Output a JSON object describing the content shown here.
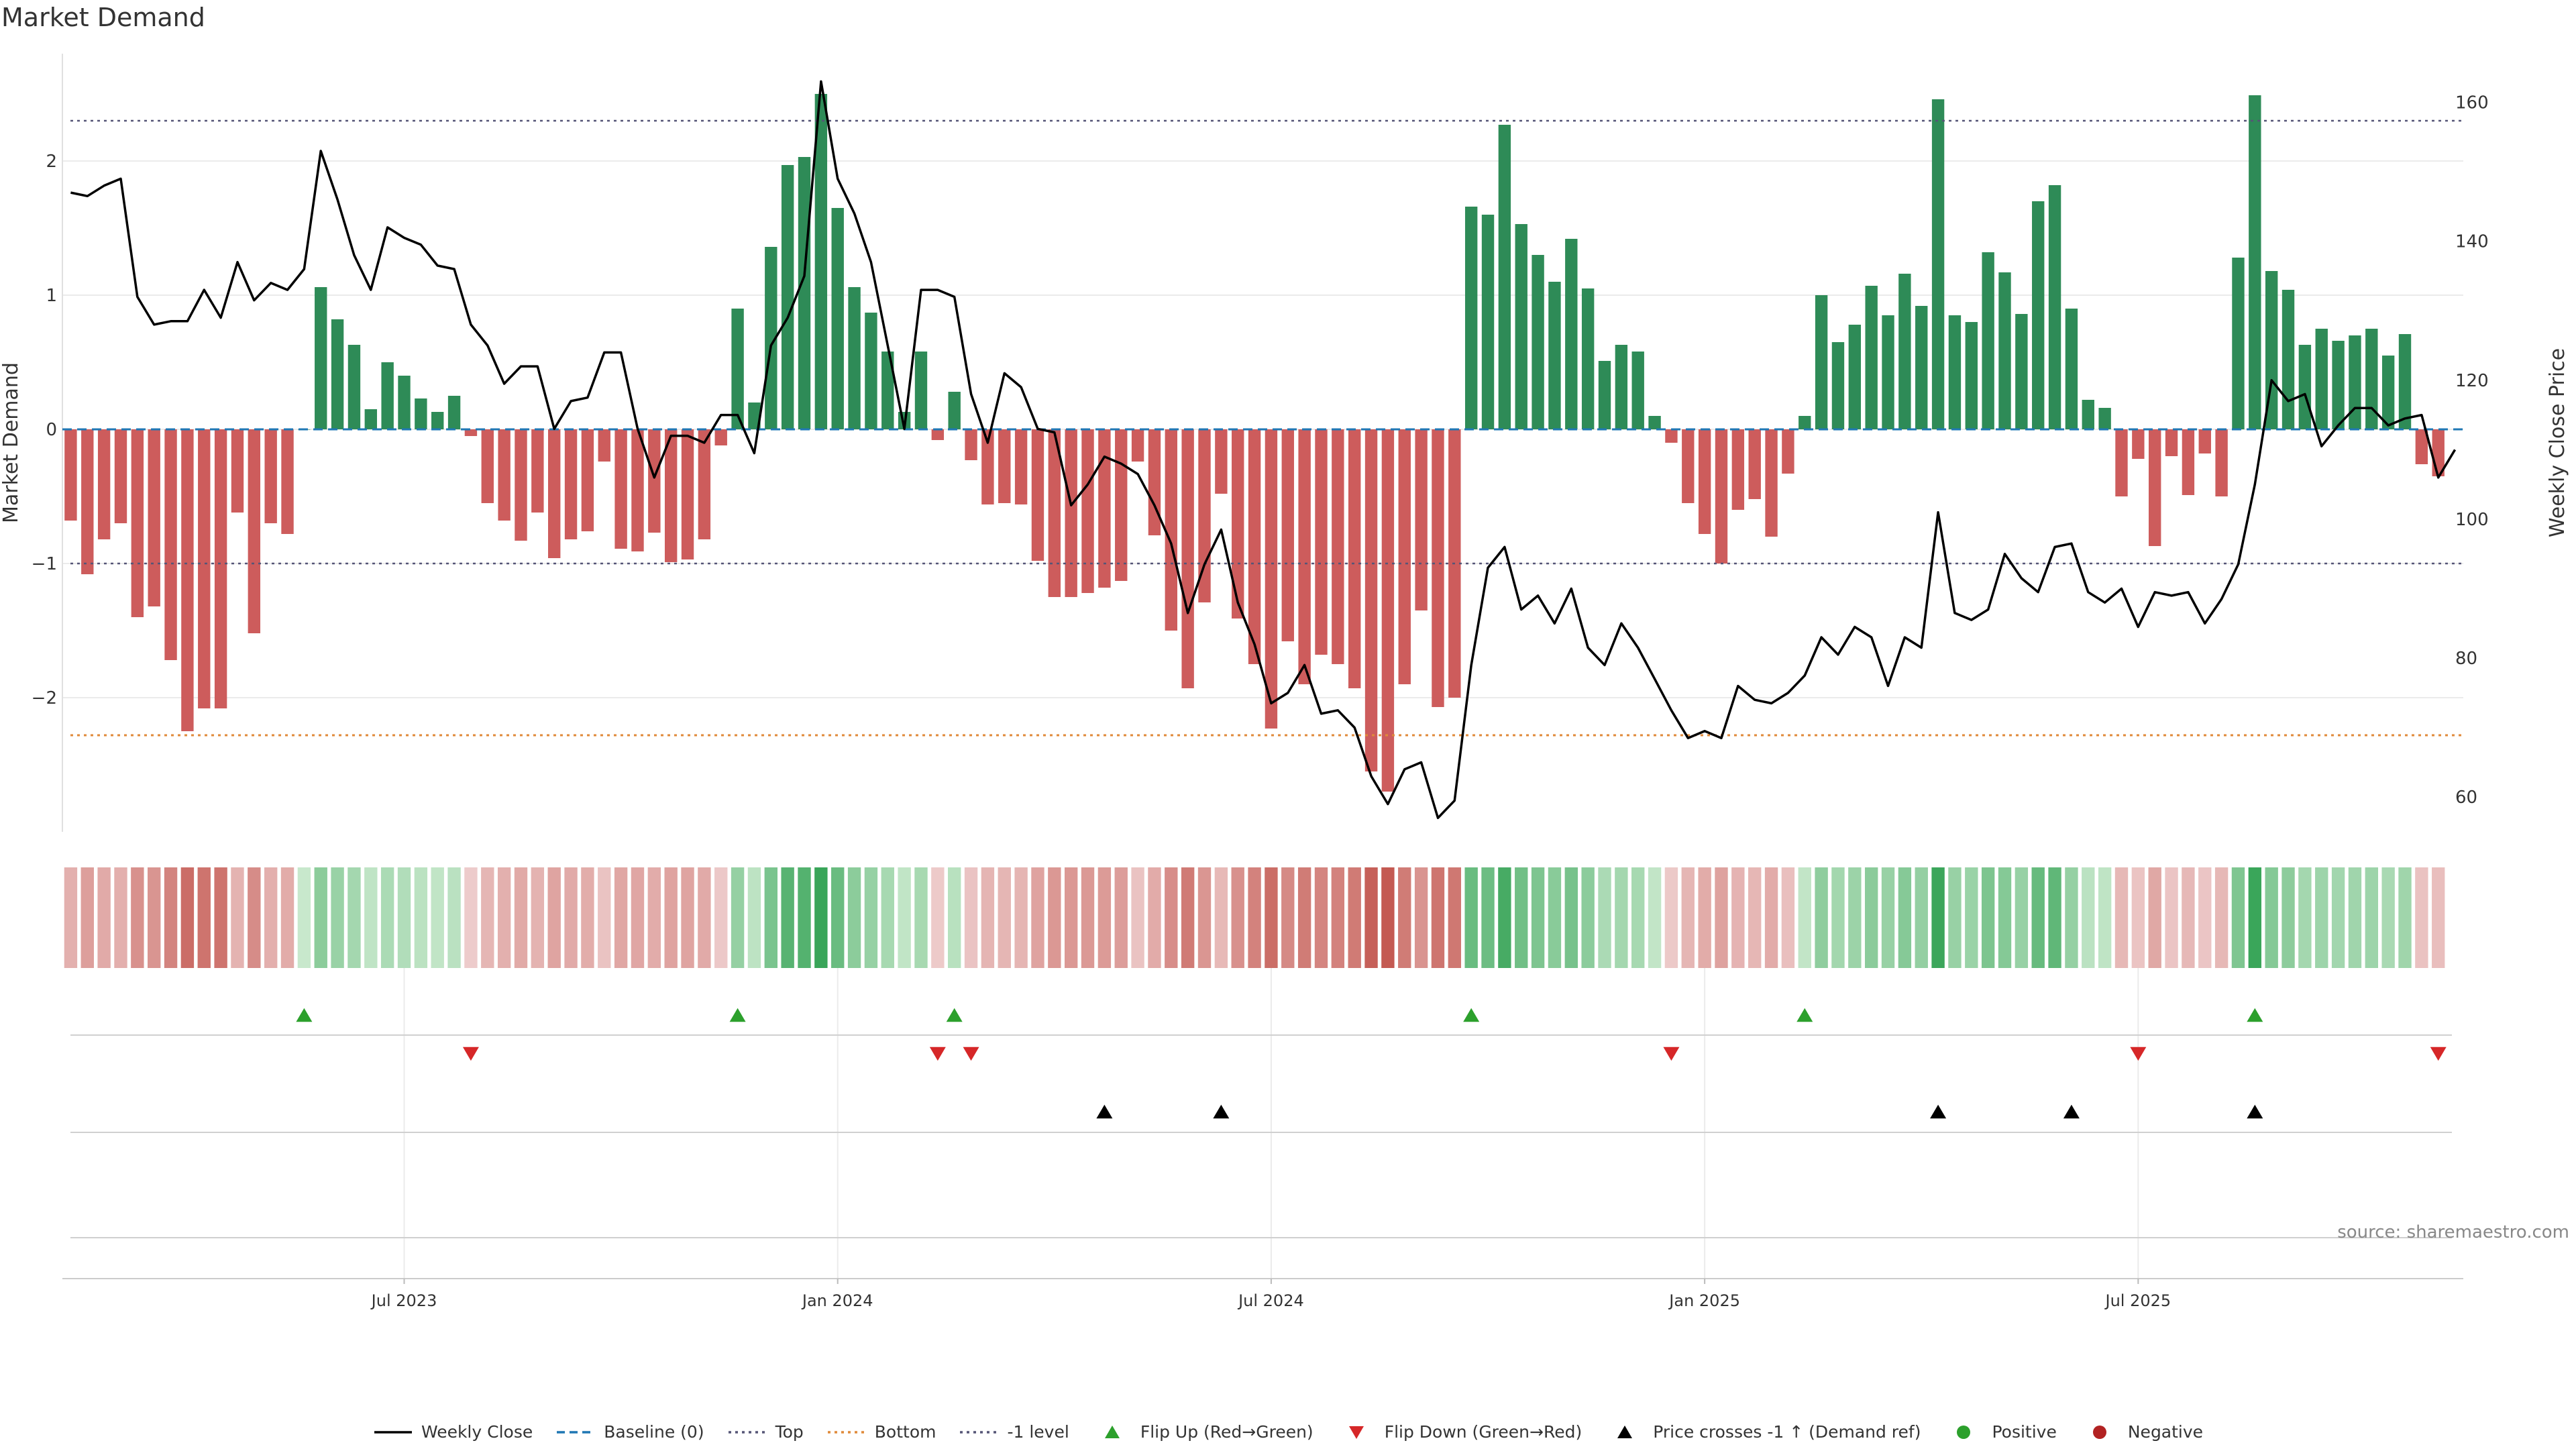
{
  "title": "Market Demand",
  "source": "source: sharemaestro.com",
  "colors": {
    "positive_bar": "#2e8b57",
    "negative_bar": "#cd5c5c",
    "price_line": "#000000",
    "baseline": "#1f77b4",
    "top_line": "#555577",
    "bottom_line": "#e08a3a",
    "minus1_line": "#555577",
    "flip_up": "#2ca02c",
    "flip_down": "#d62728",
    "cross": "#000000",
    "positive_dot": "#2ca02c",
    "negative_dot": "#b22222"
  },
  "legend": [
    {
      "label": "Weekly Close",
      "icon": "line-solid-icon",
      "color": "#000000"
    },
    {
      "label": "Baseline (0)",
      "icon": "line-dashed-icon",
      "color": "#1f77b4"
    },
    {
      "label": "Top",
      "icon": "line-dotted-icon",
      "color": "#555577"
    },
    {
      "label": "Bottom",
      "icon": "line-dotted-icon",
      "color": "#e08a3a"
    },
    {
      "label": "-1 level",
      "icon": "line-dotted-icon",
      "color": "#555577"
    },
    {
      "label": "Flip Up (Red→Green)",
      "icon": "triangle-up-icon",
      "color": "#2ca02c"
    },
    {
      "label": "Flip Down (Green→Red)",
      "icon": "triangle-down-icon",
      "color": "#d62728"
    },
    {
      "label": "Price crosses -1 ↑ (Demand ref)",
      "icon": "triangle-up-icon",
      "color": "#000000"
    },
    {
      "label": "Positive",
      "icon": "circle-icon",
      "color": "#2ca02c"
    },
    {
      "label": "Negative",
      "icon": "circle-icon",
      "color": "#b22222"
    }
  ],
  "chart_data": {
    "type": "bar+line",
    "title": "Market Demand",
    "ylabel_left": "Market Demand",
    "ylabel_right": "Weekly Close Price",
    "ylim_left": [
      -3.0,
      2.8
    ],
    "ylim_right": [
      55,
      167
    ],
    "yticks_left": [
      2,
      1,
      0,
      -1,
      -2
    ],
    "ytick_labels_left": [
      "2",
      "1",
      "0",
      "−1",
      "−2"
    ],
    "yticks_right": [
      160,
      140,
      120,
      100,
      80,
      60
    ],
    "ytick_labels_right": [
      "160",
      "140",
      "120",
      "100",
      "80",
      "60"
    ],
    "x_week_range": [
      0,
      143
    ],
    "xticks": [
      {
        "week": 20,
        "label": "Jul 2023"
      },
      {
        "week": 46,
        "label": "Jan 2024"
      },
      {
        "week": 72,
        "label": "Jul 2024"
      },
      {
        "week": 98,
        "label": "Jan 2025"
      },
      {
        "week": 124,
        "label": "Jul 2025"
      }
    ],
    "reference_lines": {
      "top": 2.3,
      "bottom": -2.28,
      "minus_one": -1.0,
      "baseline": 0
    },
    "demand": [
      -0.68,
      -1.08,
      -0.82,
      -0.7,
      -1.4,
      -1.32,
      -1.72,
      -2.25,
      -2.08,
      -2.08,
      -0.62,
      -1.52,
      -0.7,
      -0.78,
      0.0,
      1.06,
      0.82,
      0.63,
      0.15,
      0.5,
      0.4,
      0.23,
      0.13,
      0.25,
      -0.05,
      -0.55,
      -0.68,
      -0.83,
      -0.62,
      -0.96,
      -0.82,
      -0.76,
      -0.24,
      -0.89,
      -0.91,
      -0.77,
      -0.99,
      -0.97,
      -0.82,
      -0.12,
      0.9,
      0.2,
      1.36,
      1.97,
      2.03,
      2.5,
      1.65,
      1.06,
      0.87,
      0.58,
      0.13,
      0.58,
      -0.08,
      0.28,
      -0.23,
      -0.56,
      -0.55,
      -0.56,
      -0.98,
      -1.25,
      -1.25,
      -1.22,
      -1.18,
      -1.13,
      -0.24,
      -0.79,
      -1.5,
      -1.93,
      -1.29,
      -0.48,
      -1.41,
      -1.75,
      -2.23,
      -1.58,
      -1.9,
      -1.68,
      -1.75,
      -1.93,
      -2.55,
      -2.7,
      -1.9,
      -1.35,
      -2.07,
      -2.0,
      1.66,
      1.6,
      2.27,
      1.53,
      1.3,
      1.1,
      1.42,
      1.05,
      0.51,
      0.63,
      0.58,
      0.1,
      -0.1,
      -0.55,
      -0.78,
      -1.0,
      -0.6,
      -0.52,
      -0.8,
      -0.33,
      0.1,
      1.0,
      0.65,
      0.78,
      1.07,
      0.85,
      1.16,
      0.92,
      2.46,
      0.85,
      0.8,
      1.32,
      1.17,
      0.86,
      1.7,
      1.82,
      0.9,
      0.22,
      0.16,
      -0.5,
      -0.22,
      -0.87,
      -0.2,
      -0.49,
      -0.18,
      -0.5,
      1.28,
      2.49,
      1.18,
      1.04,
      0.63,
      0.75,
      0.66,
      0.7,
      0.75,
      0.55,
      0.71,
      -0.26,
      -0.35
    ],
    "price_week": [
      0,
      1,
      2,
      3,
      4,
      5,
      6,
      7,
      8,
      9,
      10,
      11,
      12,
      13,
      14,
      15,
      16,
      17,
      18,
      19,
      20,
      21,
      22,
      23,
      24,
      25,
      26,
      27,
      28,
      29,
      30,
      31,
      32,
      33,
      34,
      35,
      36,
      37,
      38,
      39,
      40,
      41,
      42,
      43,
      44,
      45,
      46,
      47,
      48,
      49,
      50,
      51,
      52,
      53,
      54,
      55,
      56,
      57,
      58,
      59,
      60,
      61,
      62,
      63,
      64,
      65,
      66,
      67,
      68,
      69,
      70,
      71,
      72,
      73,
      74,
      75,
      76,
      77,
      78,
      79,
      80,
      81,
      82,
      83,
      84,
      85,
      86,
      87,
      88,
      89,
      90,
      91,
      92,
      93,
      94,
      95,
      96,
      97,
      98,
      99,
      100,
      101,
      102,
      103,
      104,
      105,
      106,
      107,
      108,
      109,
      110,
      111,
      112,
      113,
      114,
      115,
      116,
      117,
      118,
      119,
      120,
      121,
      122,
      123,
      124,
      125,
      126,
      127,
      128,
      129,
      130,
      131,
      132,
      133,
      134,
      135,
      136,
      137,
      138,
      139,
      140,
      141,
      142,
      143
    ],
    "price": [
      147,
      146.5,
      148,
      149,
      132,
      128,
      128.5,
      128.5,
      133,
      129,
      137,
      131.5,
      134,
      133,
      136,
      153,
      146,
      138,
      133,
      142,
      140.5,
      139.5,
      136.5,
      136,
      128,
      125,
      119.5,
      122,
      122,
      113,
      117,
      117.5,
      124,
      124,
      113,
      106,
      112,
      112,
      111,
      115,
      115,
      109.5,
      125,
      129,
      135,
      163,
      149,
      144,
      137,
      125,
      113,
      133,
      133,
      132,
      118,
      111,
      121,
      119,
      113,
      112.5,
      102,
      105,
      109,
      108,
      106.5,
      102,
      96.5,
      86.5,
      93.5,
      98.5,
      88,
      82,
      73.5,
      75,
      79,
      72,
      72.5,
      70,
      63,
      59,
      64,
      65,
      57,
      59.5,
      79,
      93,
      96,
      87,
      89,
      85,
      90,
      81.5,
      79,
      85,
      81.5,
      77,
      72.5,
      68.5,
      69.5,
      68.5,
      76,
      74,
      73.5,
      75,
      77.5,
      83,
      80.5,
      84.5,
      83,
      76,
      83,
      81.5,
      101,
      86.5,
      85.5,
      87,
      95,
      91.5,
      89.5,
      96,
      96.5,
      89.5,
      88,
      90,
      84.5,
      89.5,
      89,
      89.5,
      85,
      88.5,
      93.5,
      105,
      120,
      117,
      118,
      110.5,
      113.5,
      116,
      116,
      113.5,
      114.5,
      115,
      106,
      110
    ],
    "heat_strip": [
      -0.68,
      -1.08,
      -0.82,
      -0.7,
      -1.4,
      -1.32,
      -1.72,
      -2.25,
      -2.08,
      -2.08,
      -0.62,
      -1.52,
      -0.7,
      -0.78,
      0.0,
      1.06,
      0.82,
      0.63,
      0.15,
      0.5,
      0.4,
      0.23,
      0.13,
      0.25,
      -0.05,
      -0.55,
      -0.68,
      -0.83,
      -0.62,
      -0.96,
      -0.82,
      -0.76,
      -0.24,
      -0.89,
      -0.91,
      -0.77,
      -0.99,
      -0.97,
      -0.82,
      -0.12,
      0.9,
      0.2,
      1.36,
      1.97,
      2.03,
      2.5,
      1.65,
      1.06,
      0.87,
      0.58,
      0.13,
      0.58,
      -0.08,
      0.28,
      -0.23,
      -0.56,
      -0.55,
      -0.56,
      -0.98,
      -1.25,
      -1.25,
      -1.22,
      -1.18,
      -1.13,
      -0.24,
      -0.79,
      -1.5,
      -1.93,
      -1.29,
      -0.48,
      -1.41,
      -1.75,
      -2.23,
      -1.58,
      -1.9,
      -1.68,
      -1.75,
      -1.93,
      -2.55,
      -2.7,
      -1.9,
      -1.35,
      -2.07,
      -2.0,
      1.66,
      1.6,
      2.27,
      1.53,
      1.3,
      1.1,
      1.42,
      1.05,
      0.51,
      0.63,
      0.58,
      0.1,
      -0.1,
      -0.55,
      -0.78,
      -1.0,
      -0.6,
      -0.52,
      -0.8,
      -0.33,
      0.1,
      1.0,
      0.65,
      0.78,
      1.07,
      0.85,
      1.16,
      0.92,
      2.46,
      0.85,
      0.8,
      1.32,
      1.17,
      0.86,
      1.7,
      1.82,
      0.9,
      0.22,
      0.16,
      -0.5,
      -0.22,
      -0.87,
      -0.2,
      -0.49,
      -0.18,
      -0.5,
      1.28,
      2.49,
      1.18,
      1.04,
      0.63,
      0.75,
      0.66,
      0.7,
      0.75,
      0.55,
      0.71,
      -0.26,
      -0.35
    ],
    "flip_up_weeks": [
      14,
      40,
      53,
      84,
      104,
      131
    ],
    "flip_down_weeks": [
      24,
      52,
      54,
      96,
      124,
      142
    ],
    "price_cross_weeks": [
      62,
      69,
      112,
      120,
      131
    ]
  }
}
